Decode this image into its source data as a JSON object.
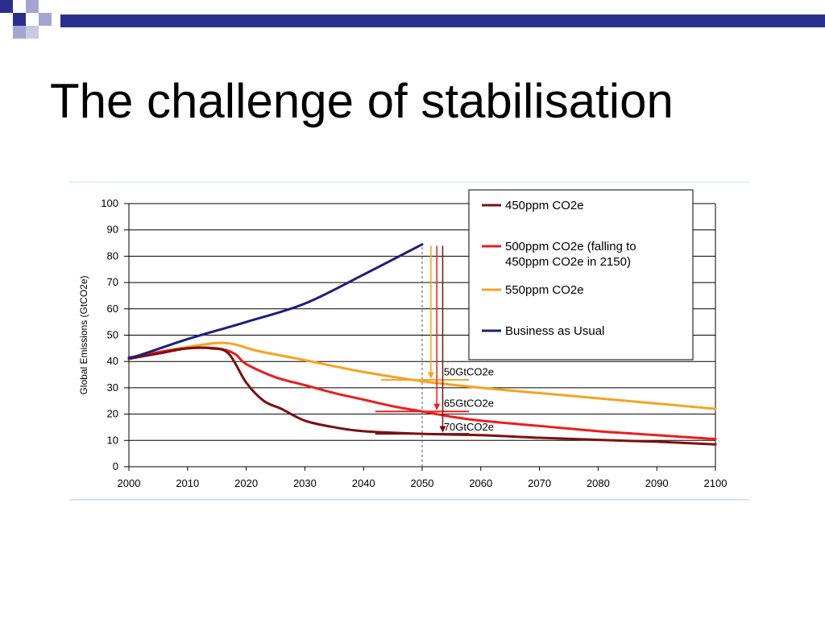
{
  "slide": {
    "title": "The challenge of stabilisation",
    "accent_color": "#2b2f8c",
    "accent_light": "#a4a6d1"
  },
  "chart_data": {
    "type": "line",
    "title": "",
    "xlabel": "",
    "ylabel": "Global Emissions (GtCO2e)",
    "xlim": [
      2000,
      2100
    ],
    "ylim": [
      0,
      100
    ],
    "x_ticks": [
      2000,
      2010,
      2020,
      2030,
      2040,
      2050,
      2060,
      2070,
      2080,
      2090,
      2100
    ],
    "y_ticks": [
      0,
      10,
      20,
      30,
      40,
      50,
      60,
      70,
      80,
      90,
      100
    ],
    "grid": "horizontal",
    "legend_position": "top-right",
    "series": [
      {
        "name": "450ppm CO2e",
        "color": "#7b1010",
        "points": [
          [
            2000,
            41
          ],
          [
            2005,
            43
          ],
          [
            2010,
            45
          ],
          [
            2014,
            45
          ],
          [
            2017,
            43
          ],
          [
            2020,
            32
          ],
          [
            2023,
            25
          ],
          [
            2026,
            22
          ],
          [
            2030,
            17.5
          ],
          [
            2035,
            15
          ],
          [
            2040,
            13.5
          ],
          [
            2050,
            12.5
          ],
          [
            2060,
            12
          ],
          [
            2070,
            11
          ],
          [
            2080,
            10.2
          ],
          [
            2090,
            9.5
          ],
          [
            2100,
            8.5
          ]
        ]
      },
      {
        "name": "500ppm CO2e (falling to 450ppm CO2e in 2150)",
        "color": "#ee1c1c",
        "points": [
          [
            2000,
            41
          ],
          [
            2005,
            43.5
          ],
          [
            2010,
            45
          ],
          [
            2015,
            45
          ],
          [
            2018,
            43
          ],
          [
            2020,
            39
          ],
          [
            2025,
            34
          ],
          [
            2030,
            31
          ],
          [
            2035,
            28
          ],
          [
            2040,
            25.5
          ],
          [
            2045,
            23
          ],
          [
            2050,
            21
          ],
          [
            2055,
            19
          ],
          [
            2060,
            17.5
          ],
          [
            2070,
            15.5
          ],
          [
            2080,
            13.5
          ],
          [
            2090,
            12
          ],
          [
            2100,
            10.5
          ]
        ]
      },
      {
        "name": "550ppm CO2e",
        "color": "#f5a321",
        "points": [
          [
            2000,
            41
          ],
          [
            2005,
            43.5
          ],
          [
            2010,
            45.5
          ],
          [
            2015,
            47
          ],
          [
            2018,
            46.5
          ],
          [
            2022,
            44
          ],
          [
            2030,
            40.5
          ],
          [
            2040,
            36
          ],
          [
            2050,
            32.5
          ],
          [
            2060,
            30
          ],
          [
            2070,
            28
          ],
          [
            2080,
            26
          ],
          [
            2090,
            24
          ],
          [
            2100,
            22
          ]
        ]
      },
      {
        "name": "Business as Usual",
        "color": "#1a1f7a",
        "points": [
          [
            2000,
            41.5
          ],
          [
            2002,
            42.5
          ],
          [
            2010,
            48.5
          ],
          [
            2020,
            55
          ],
          [
            2030,
            62
          ],
          [
            2040,
            73
          ],
          [
            2050,
            84.5
          ]
        ]
      }
    ],
    "annotations": [
      {
        "label": "50GtCO2e",
        "y": 33,
        "x_from": 2043,
        "x_to": 2058,
        "color": "#f5a321",
        "label_x": 2053,
        "label_y": 36
      },
      {
        "label": "65GtCO2e",
        "y": 21,
        "x_from": 2042,
        "x_to": 2058,
        "color": "#ee1c1c",
        "label_x": 2053,
        "label_y": 24
      },
      {
        "label": "70GtCO2e",
        "y": 12.5,
        "x_from": 2042,
        "x_to": 2058,
        "color": "#7b1010",
        "label_x": 2053,
        "label_y": 15
      }
    ],
    "arrows": [
      {
        "x": 2051.5,
        "y_from": 84,
        "y_to": 33.5,
        "color": "#f5a321"
      },
      {
        "x": 2052.5,
        "y_from": 84,
        "y_to": 21.5,
        "color": "#ee1c1c"
      },
      {
        "x": 2053.5,
        "y_from": 84,
        "y_to": 13,
        "color": "#7b1010"
      }
    ],
    "vline": {
      "x": 2050,
      "y_from": 0,
      "y_to": 84.5,
      "color": "#555555"
    }
  }
}
